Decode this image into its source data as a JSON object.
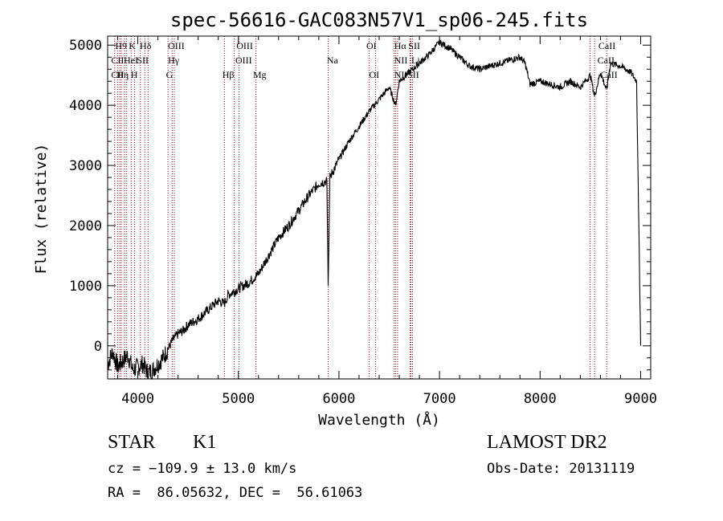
{
  "chart_data": {
    "type": "line",
    "title": "spec-56616-GAC083N57V1_sp06-245.fits",
    "xlabel": "Wavelength (Å)",
    "ylabel": "Flux (relative)",
    "xlim": [
      3700,
      9100
    ],
    "ylim": [
      -550,
      5150
    ],
    "xticks": [
      4000,
      5000,
      6000,
      7000,
      8000,
      9000
    ],
    "yticks": [
      0,
      1000,
      2000,
      3000,
      4000,
      5000
    ],
    "grid": false,
    "line_color": "#000000",
    "marker_color": "#8b0000",
    "series": [
      {
        "x": [
          3700,
          3750,
          3800,
          3850,
          3900,
          3950,
          4000,
          4050,
          4100,
          4150,
          4200,
          4250,
          4300,
          4350,
          4400,
          4450,
          4500,
          4600,
          4700,
          4800,
          4860,
          4900,
          5000,
          5100,
          5200,
          5300,
          5400,
          5500,
          5600,
          5700,
          5800,
          5880,
          5893,
          5910,
          6000,
          6100,
          6200,
          6300,
          6400,
          6500,
          6563,
          6600,
          6700,
          6800,
          6900,
          7000,
          7100,
          7200,
          7300,
          7400,
          7500,
          7600,
          7700,
          7800,
          7850,
          7900,
          8000,
          8100,
          8200,
          8300,
          8400,
          8500,
          8542,
          8600,
          8662,
          8700,
          8800,
          8900,
          8960,
          8990,
          9000
        ],
        "y": [
          -300,
          -100,
          -350,
          -250,
          -150,
          -400,
          -350,
          -300,
          -450,
          -400,
          -300,
          -200,
          -50,
          100,
          200,
          250,
          350,
          450,
          600,
          750,
          700,
          850,
          950,
          1050,
          1200,
          1500,
          1800,
          2000,
          2250,
          2500,
          2700,
          2750,
          1000,
          2800,
          3100,
          3400,
          3650,
          3900,
          4100,
          4300,
          4000,
          4400,
          4550,
          4700,
          4850,
          5050,
          4950,
          4800,
          4650,
          4600,
          4650,
          4700,
          4750,
          4800,
          4700,
          4350,
          4400,
          4350,
          4300,
          4400,
          4300,
          4500,
          4150,
          4550,
          4250,
          4700,
          4650,
          4550,
          4400,
          1100,
          0
        ]
      }
    ],
    "lines": [
      {
        "w": 3770,
        "label": "H9"
      },
      {
        "w": 3798,
        "label": "H10"
      },
      {
        "w": 3820,
        "label": "CII"
      },
      {
        "w": 3835,
        "label": "Hη"
      },
      {
        "w": 3869,
        "label": "NeIII"
      },
      {
        "w": 3889,
        "label": "Hζ"
      },
      {
        "w": 3934,
        "label": "K"
      },
      {
        "w": 3968,
        "label": "H"
      },
      {
        "w": 4026,
        "label": "HeI"
      },
      {
        "w": 4069,
        "label": "SII"
      },
      {
        "w": 4102,
        "label": "Hδ"
      },
      {
        "w": 4300,
        "label": "G"
      },
      {
        "w": 4341,
        "label": "Hγ"
      },
      {
        "w": 4363,
        "label": "OIII"
      },
      {
        "w": 4861,
        "label": "Hβ"
      },
      {
        "w": 4959,
        "label": "OIII"
      },
      {
        "w": 5007,
        "label": "OIII"
      },
      {
        "w": 5175,
        "label": "Mg"
      },
      {
        "w": 5893,
        "label": "Na"
      },
      {
        "w": 6300,
        "label": "OI"
      },
      {
        "w": 6364,
        "label": "OI"
      },
      {
        "w": 6548,
        "label": "NII"
      },
      {
        "w": 6563,
        "label": "Hα"
      },
      {
        "w": 6583,
        "label": "NII"
      },
      {
        "w": 6707,
        "label": "Li"
      },
      {
        "w": 6716,
        "label": "SII"
      },
      {
        "w": 6731,
        "label": "SII"
      },
      {
        "w": 8498,
        "label": "CaII"
      },
      {
        "w": 8542,
        "label": "CaII"
      },
      {
        "w": 8662,
        "label": "CaII"
      }
    ],
    "label_rows": [
      [
        {
          "w": 3775,
          "text": "H9"
        },
        {
          "w": 3910,
          "text": "K"
        },
        {
          "w": 4020,
          "text": "Hδ"
        },
        {
          "w": 4300,
          "text": "OIII"
        },
        {
          "w": 4980,
          "text": "OIII"
        },
        {
          "w": 6272,
          "text": "OI"
        },
        {
          "w": 6550,
          "text": "Hα"
        },
        {
          "w": 6690,
          "text": "SII"
        },
        {
          "w": 8580,
          "text": "CaII"
        }
      ],
      [
        {
          "w": 3735,
          "text": "CII"
        },
        {
          "w": 3860,
          "text": "HeI"
        },
        {
          "w": 3990,
          "text": "SII"
        },
        {
          "w": 4300,
          "text": "Hγ"
        },
        {
          "w": 4970,
          "text": "OIII"
        },
        {
          "w": 5880,
          "text": "Na"
        },
        {
          "w": 6550,
          "text": "NII"
        },
        {
          "w": 6720,
          "text": "Li"
        },
        {
          "w": 8570,
          "text": "CaII"
        }
      ],
      [
        {
          "w": 3735,
          "text": "CII"
        },
        {
          "w": 3790,
          "text": "Hη"
        },
        {
          "w": 3930,
          "text": "H"
        },
        {
          "w": 4280,
          "text": "G"
        },
        {
          "w": 4840,
          "text": "Hβ"
        },
        {
          "w": 5145,
          "text": "Mg"
        },
        {
          "w": 6300,
          "text": "OI"
        },
        {
          "w": 6550,
          "text": "NII"
        },
        {
          "w": 6680,
          "text": "SII"
        },
        {
          "w": 8600,
          "text": "CaII"
        }
      ]
    ]
  },
  "info": {
    "object_type": "STAR",
    "subclass": "K1",
    "survey": "LAMOST DR2",
    "cz": "cz = −109.9 ± 13.0 km/s",
    "obs_date": "Obs-Date: 20131119",
    "coords": "RA =  86.05632, DEC =  56.61063"
  }
}
